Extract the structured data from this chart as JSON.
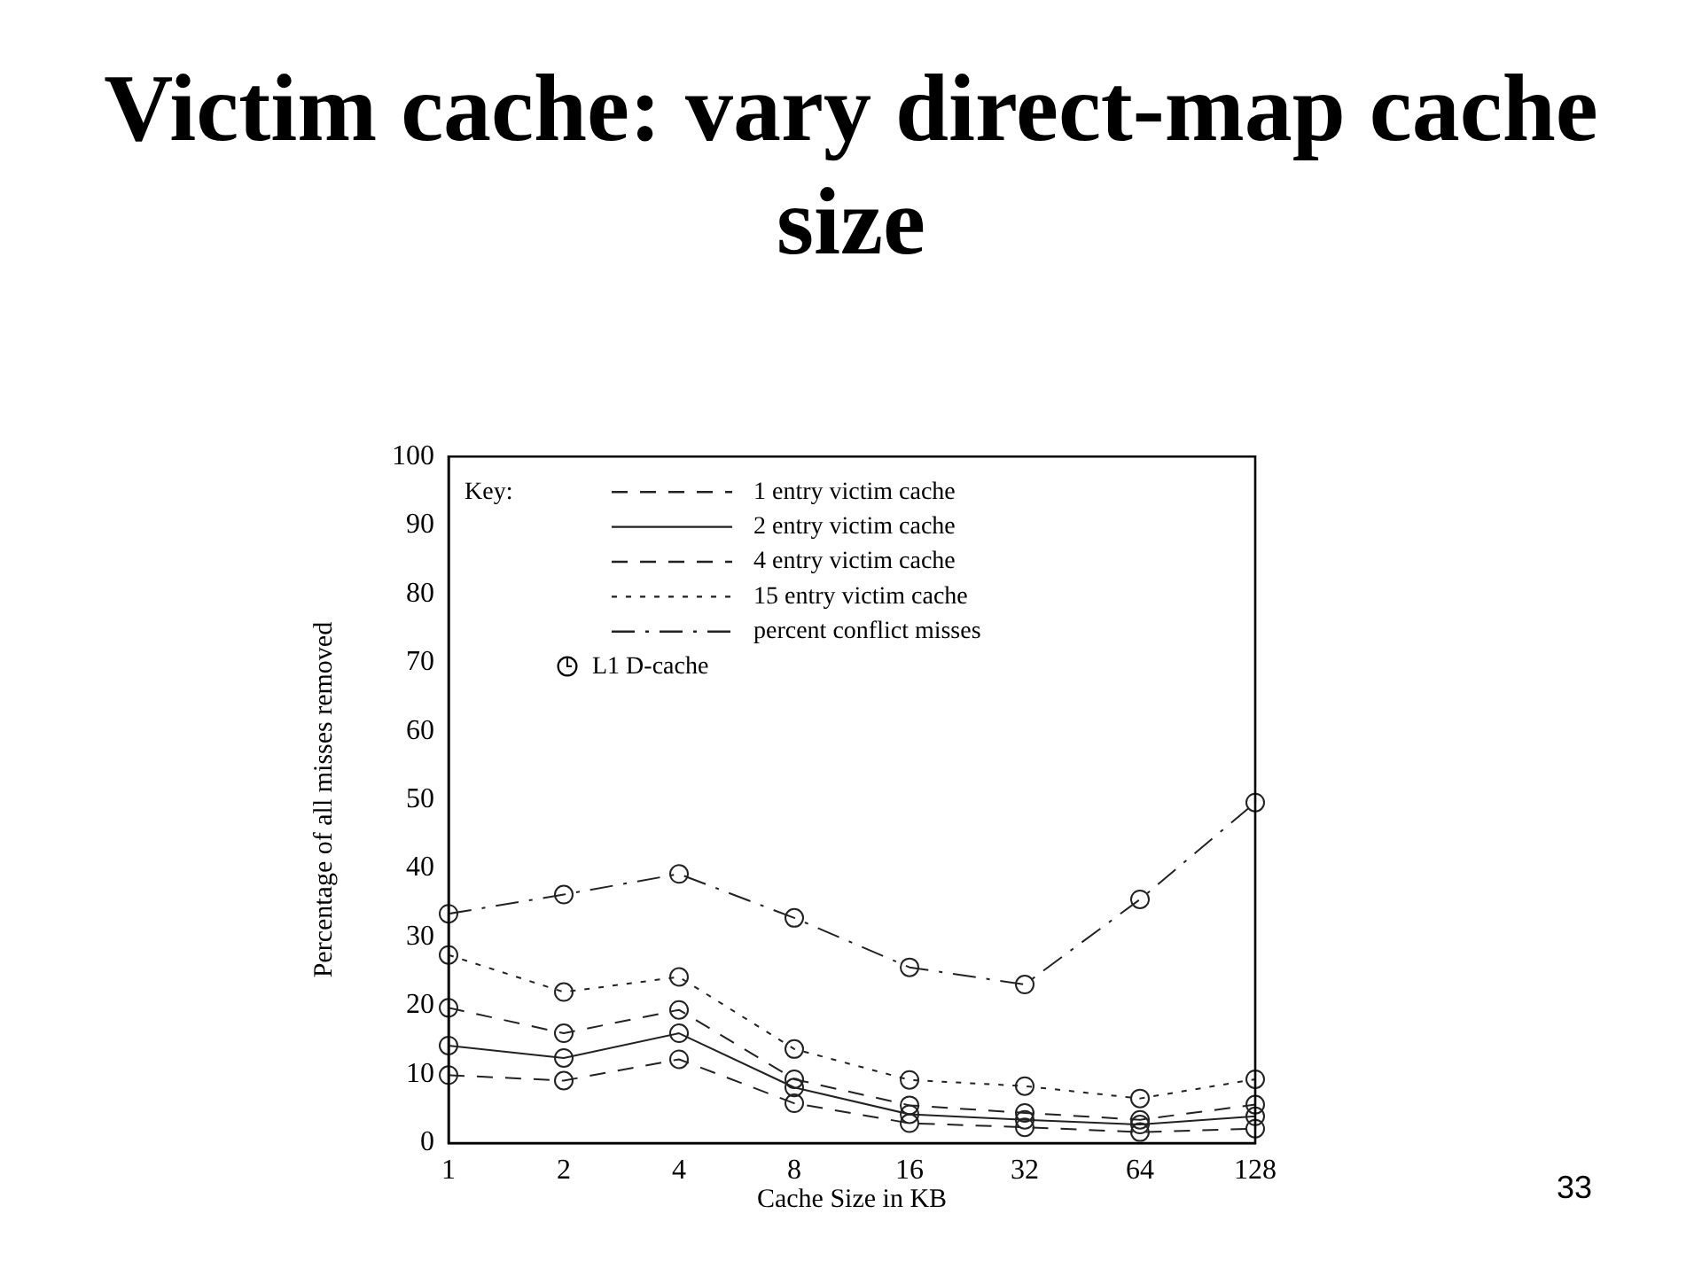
{
  "chart_data": {
    "type": "line",
    "title": "Victim cache: vary direct-map cache size",
    "xlabel": "Cache Size in KB",
    "ylabel": "Percentage of all misses removed",
    "legend_title": "Key:",
    "annotations": [
      "33",
      "L1 D-cache"
    ],
    "categories": [
      "1",
      "2",
      "4",
      "8",
      "16",
      "32",
      "64",
      "128"
    ],
    "series": [
      {
        "name": "1 entry victim cache",
        "color": "#222222",
        "line_style": "dashed",
        "values": [
          9.9,
          9.1,
          12.2,
          5.8,
          2.9,
          2.3,
          1.6,
          2.1
        ]
      },
      {
        "name": "2 entry victim cache",
        "color": "#222222",
        "line_style": "solid",
        "values": [
          14.2,
          12.4,
          16,
          8.1,
          4.2,
          3.4,
          2.7,
          3.9
        ]
      },
      {
        "name": "4 entry victim cache",
        "color": "#222222",
        "line_style": "dashed",
        "values": [
          19.7,
          16,
          19.4,
          9.3,
          5.5,
          4.4,
          3.4,
          5.6
        ]
      },
      {
        "name": "15 entry victim cache",
        "color": "#222222",
        "line_style": "dotted",
        "values": [
          27.4,
          22,
          24.2,
          13.7,
          9.2,
          8.3,
          6.5,
          9.3
        ]
      },
      {
        "name": "percent conflict misses",
        "color": "#222222",
        "line_style": "dashdot",
        "values": [
          33.4,
          36.2,
          39.2,
          32.8,
          25.6,
          23.1,
          35.5,
          49.6
        ]
      }
    ],
    "ylim": [
      0,
      100
    ],
    "yticks": [
      0,
      10,
      20,
      30,
      40,
      50,
      60,
      70,
      80,
      90,
      100
    ],
    "grid": false,
    "legend": "top left",
    "marker": "circle"
  }
}
